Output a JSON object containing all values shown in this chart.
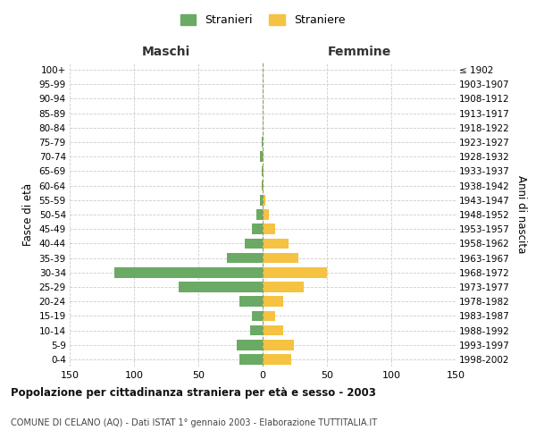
{
  "age_groups": [
    "0-4",
    "5-9",
    "10-14",
    "15-19",
    "20-24",
    "25-29",
    "30-34",
    "35-39",
    "40-44",
    "45-49",
    "50-54",
    "55-59",
    "60-64",
    "65-69",
    "70-74",
    "75-79",
    "80-84",
    "85-89",
    "90-94",
    "95-99",
    "100+"
  ],
  "birth_years": [
    "1998-2002",
    "1993-1997",
    "1988-1992",
    "1983-1987",
    "1978-1982",
    "1973-1977",
    "1968-1972",
    "1963-1967",
    "1958-1962",
    "1953-1957",
    "1948-1952",
    "1943-1947",
    "1938-1942",
    "1933-1937",
    "1928-1932",
    "1923-1927",
    "1918-1922",
    "1913-1917",
    "1908-1912",
    "1903-1907",
    "≤ 1902"
  ],
  "males": [
    18,
    20,
    10,
    8,
    18,
    65,
    115,
    28,
    14,
    8,
    5,
    2,
    1,
    1,
    2,
    1,
    0,
    0,
    0,
    0,
    0
  ],
  "females": [
    22,
    24,
    16,
    10,
    16,
    32,
    50,
    28,
    20,
    10,
    5,
    2,
    1,
    1,
    1,
    0,
    0,
    0,
    0,
    0,
    0
  ],
  "male_color": "#6aaa64",
  "female_color": "#f5c242",
  "male_label": "Stranieri",
  "female_label": "Straniere",
  "title": "Popolazione per cittadinanza straniera per età e sesso - 2003",
  "subtitle": "COMUNE DI CELANO (AQ) - Dati ISTAT 1° gennaio 2003 - Elaborazione TUTTITALIA.IT",
  "xlabel_left": "Maschi",
  "xlabel_right": "Femmine",
  "ylabel_left": "Fasce di età",
  "ylabel_right": "Anni di nascita",
  "xlim": 150,
  "background_color": "#ffffff",
  "grid_color": "#cccccc"
}
